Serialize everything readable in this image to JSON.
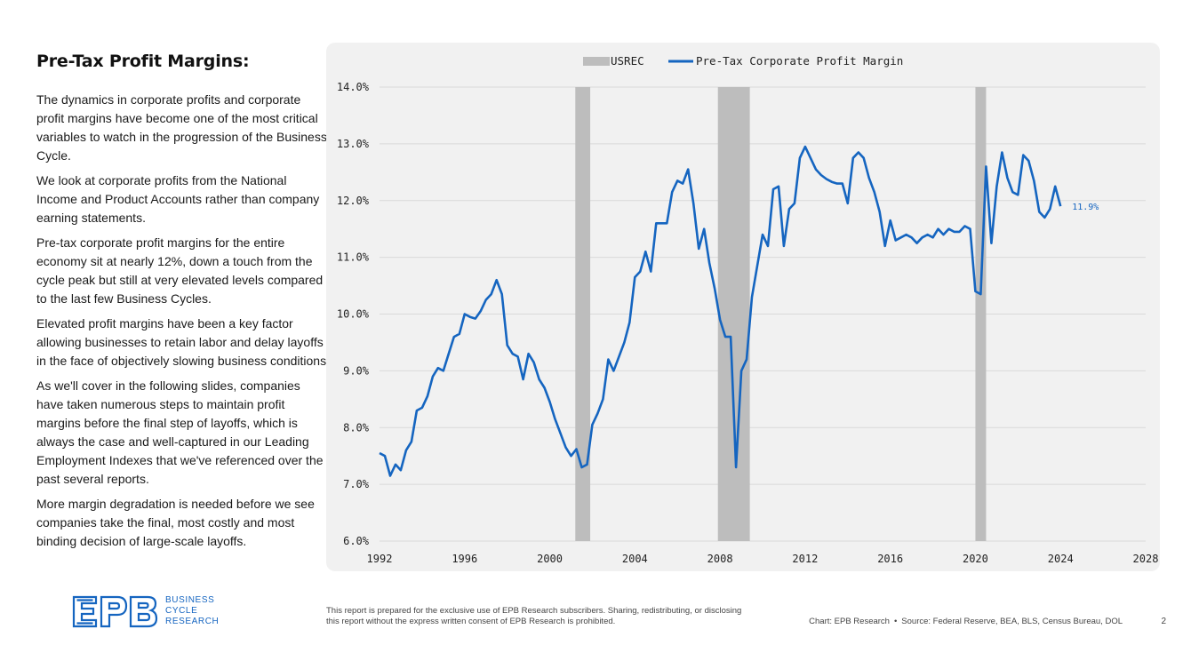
{
  "slide": {
    "title": "Pre-Tax Profit Margins:",
    "paragraphs": [
      "The dynamics in corporate profits and corporate profit margins have become one of the most critical variables to watch in the progression of the Business Cycle.",
      "We look at corporate profits from the National Income and Product Accounts rather than company earning statements.",
      "Pre-tax corporate profit margins for the entire economy sit at nearly 12%, down a touch from the cycle peak but still at very elevated levels compared to the last few Business Cycles.",
      "Elevated profit margins have been a key factor allowing businesses to retain labor and delay layoffs in the face of objectively slowing business conditions.",
      "As we'll cover in the following slides, companies have taken numerous steps to maintain profit margins before the final step of layoffs, which is always the case and well-captured in our Leading Employment Indexes that we've referenced over the past several reports.",
      "More margin degradation is needed before we see companies take the final, most costly and most binding decision of large-scale layoffs."
    ]
  },
  "logo": {
    "mark": "EPB",
    "line1": "BUSINESS",
    "line2": "CYCLE",
    "line3": "RESEARCH"
  },
  "footer": {
    "disclaimer": "This report is prepared for the exclusive use of EPB Research subscribers. Sharing, redistributing, or disclosing this report without the express written consent of EPB Research is prohibited.",
    "chart_credit": "Chart: EPB Research",
    "separator": "•",
    "source": "Source: Federal Reserve, BEA, BLS, Census Bureau, DOL",
    "page_number": "2"
  },
  "colors": {
    "line": "#1565c0",
    "recession": "#bdbdbd",
    "card_bg": "#f1f1f1",
    "grid": "#d9d9d9"
  },
  "chart_data": {
    "type": "line",
    "title": "",
    "xlabel": "",
    "ylabel": "",
    "xlim": [
      1992,
      2028
    ],
    "ylim": [
      6.0,
      14.0
    ],
    "x_ticks": [
      "1992",
      "1996",
      "2000",
      "2004",
      "2008",
      "2012",
      "2016",
      "2020",
      "2024",
      "2028"
    ],
    "y_ticks": [
      "6.0%",
      "7.0%",
      "8.0%",
      "9.0%",
      "10.0%",
      "11.0%",
      "12.0%",
      "13.0%",
      "14.0%"
    ],
    "grid": true,
    "legend_position": "top-center",
    "legend": [
      {
        "name": "USREC",
        "kind": "area"
      },
      {
        "name": "Pre-Tax Corporate Profit Margin",
        "kind": "line"
      }
    ],
    "recessions": [
      {
        "start": 2001.2,
        "end": 2001.9
      },
      {
        "start": 2007.9,
        "end": 2009.4
      },
      {
        "start": 2020.0,
        "end": 2020.5
      }
    ],
    "end_label": "11.9%",
    "series": [
      {
        "name": "Pre-Tax Corporate Profit Margin",
        "x": [
          1992.0,
          1992.25,
          1992.5,
          1992.75,
          1993.0,
          1993.25,
          1993.5,
          1993.75,
          1994.0,
          1994.25,
          1994.5,
          1994.75,
          1995.0,
          1995.25,
          1995.5,
          1995.75,
          1996.0,
          1996.25,
          1996.5,
          1996.75,
          1997.0,
          1997.25,
          1997.5,
          1997.75,
          1998.0,
          1998.25,
          1998.5,
          1998.75,
          1999.0,
          1999.25,
          1999.5,
          1999.75,
          2000.0,
          2000.25,
          2000.5,
          2000.75,
          2001.0,
          2001.25,
          2001.5,
          2001.75,
          2002.0,
          2002.25,
          2002.5,
          2002.75,
          2003.0,
          2003.25,
          2003.5,
          2003.75,
          2004.0,
          2004.25,
          2004.5,
          2004.75,
          2005.0,
          2005.25,
          2005.5,
          2005.75,
          2006.0,
          2006.25,
          2006.5,
          2006.75,
          2007.0,
          2007.25,
          2007.5,
          2007.75,
          2008.0,
          2008.25,
          2008.5,
          2008.75,
          2009.0,
          2009.25,
          2009.5,
          2009.75,
          2010.0,
          2010.25,
          2010.5,
          2010.75,
          2011.0,
          2011.25,
          2011.5,
          2011.75,
          2012.0,
          2012.25,
          2012.5,
          2012.75,
          2013.0,
          2013.25,
          2013.5,
          2013.75,
          2014.0,
          2014.25,
          2014.5,
          2014.75,
          2015.0,
          2015.25,
          2015.5,
          2015.75,
          2016.0,
          2016.25,
          2016.5,
          2016.75,
          2017.0,
          2017.25,
          2017.5,
          2017.75,
          2018.0,
          2018.25,
          2018.5,
          2018.75,
          2019.0,
          2019.25,
          2019.5,
          2019.75,
          2020.0,
          2020.25,
          2020.5,
          2020.75,
          2021.0,
          2021.25,
          2021.5,
          2021.75,
          2022.0,
          2022.25,
          2022.5,
          2022.75,
          2023.0,
          2023.25,
          2023.5,
          2023.75,
          2024.0
        ],
        "values": [
          7.55,
          7.5,
          7.15,
          7.35,
          7.25,
          7.6,
          7.75,
          8.3,
          8.35,
          8.55,
          8.9,
          9.05,
          9.0,
          9.3,
          9.6,
          9.65,
          10.0,
          9.95,
          9.92,
          10.05,
          10.25,
          10.35,
          10.6,
          10.35,
          9.45,
          9.3,
          9.25,
          8.85,
          9.3,
          9.15,
          8.85,
          8.7,
          8.45,
          8.15,
          7.9,
          7.65,
          7.5,
          7.62,
          7.3,
          7.35,
          8.05,
          8.25,
          8.5,
          9.2,
          9.0,
          9.25,
          9.5,
          9.85,
          10.65,
          10.75,
          11.1,
          10.75,
          11.6,
          11.6,
          11.6,
          12.15,
          12.35,
          12.3,
          12.55,
          11.95,
          11.15,
          11.5,
          10.9,
          10.45,
          9.9,
          9.6,
          9.6,
          7.3,
          9.0,
          9.2,
          10.3,
          10.85,
          11.4,
          11.2,
          12.2,
          12.25,
          11.2,
          11.85,
          11.95,
          12.75,
          12.95,
          12.75,
          12.55,
          12.45,
          12.38,
          12.33,
          12.3,
          12.3,
          11.95,
          12.75,
          12.85,
          12.75,
          12.4,
          12.15,
          11.8,
          11.2,
          11.65,
          11.3,
          11.35,
          11.4,
          11.35,
          11.25,
          11.35,
          11.4,
          11.35,
          11.5,
          11.4,
          11.5,
          11.45,
          11.45,
          11.55,
          11.5,
          10.4,
          10.35,
          12.6,
          11.25,
          12.25,
          12.85,
          12.4,
          12.15,
          12.1,
          12.8,
          12.7,
          12.35,
          11.8,
          11.7,
          11.85,
          12.25,
          11.9
        ]
      }
    ]
  }
}
